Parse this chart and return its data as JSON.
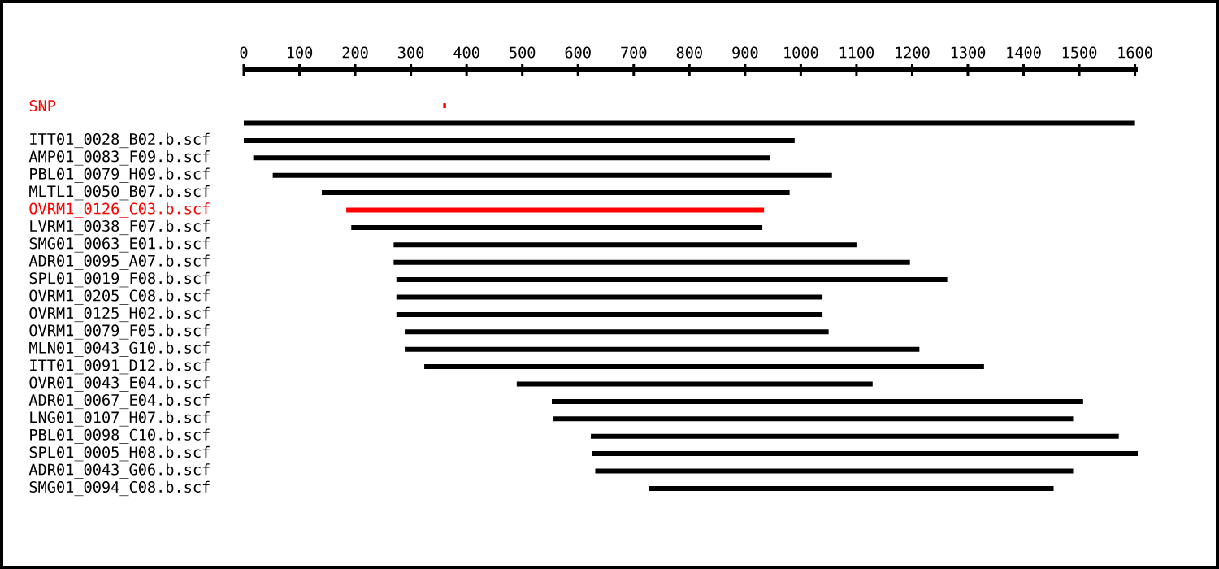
{
  "chart_data": {
    "type": "bar",
    "orientation": "horizontal",
    "categories": [
      "SNP",
      null,
      "ITT01_0028_B02.b.scf",
      "AMP01_0083_F09.b.scf",
      "PBL01_0079_H09.b.scf",
      "MLTL1_0050_B07.b.scf",
      "OVRM1_0126_C03.b.scf",
      "LVRM1_0038_F07.b.scf",
      "SMG01_0063_E01.b.scf",
      "ADR01_0095_A07.b.scf",
      "SPL01_0019_F08.b.scf",
      "OVRM1_0205_C08.b.scf",
      "OVRM1_0125_H02.b.scf",
      "OVRM1_0079_F05.b.scf",
      "MLN01_0043_G10.b.scf",
      "ITT01_0091_D12.b.scf",
      "OVR01_0043_E04.b.scf",
      "ADR01_0067_E04.b.scf",
      "LNG01_0107_H07.b.scf",
      "PBL01_0098_C10.b.scf",
      "SPL01_0005_H08.b.scf",
      "ADR01_0043_G06.b.scf",
      "SMG01_0094_C08.b.scf"
    ],
    "base": [
      358,
      0,
      0,
      17,
      52,
      140,
      184,
      193,
      269,
      269,
      274,
      274,
      274,
      289,
      289,
      324,
      490,
      553,
      556,
      623,
      625,
      631,
      727
    ],
    "values": [
      5,
      1600,
      989,
      928,
      1004,
      840,
      750,
      738,
      831,
      927,
      989,
      765,
      765,
      761,
      924,
      1005,
      639,
      954,
      933,
      948,
      980,
      858,
      727
    ],
    "colors": [
      "#ff0000",
      "#000000",
      "#000000",
      "#000000",
      "#000000",
      "#000000",
      "#ff0000",
      "#000000",
      "#000000",
      "#000000",
      "#000000",
      "#000000",
      "#000000",
      "#000000",
      "#000000",
      "#000000",
      "#000000",
      "#000000",
      "#000000",
      "#000000",
      "#000000",
      "#000000",
      "#000000"
    ],
    "xlim": [
      0,
      1605
    ],
    "xticks": [
      0,
      100,
      200,
      300,
      400,
      500,
      600,
      700,
      800,
      900,
      1000,
      1100,
      1200,
      1300,
      1400,
      1500,
      1600
    ]
  }
}
